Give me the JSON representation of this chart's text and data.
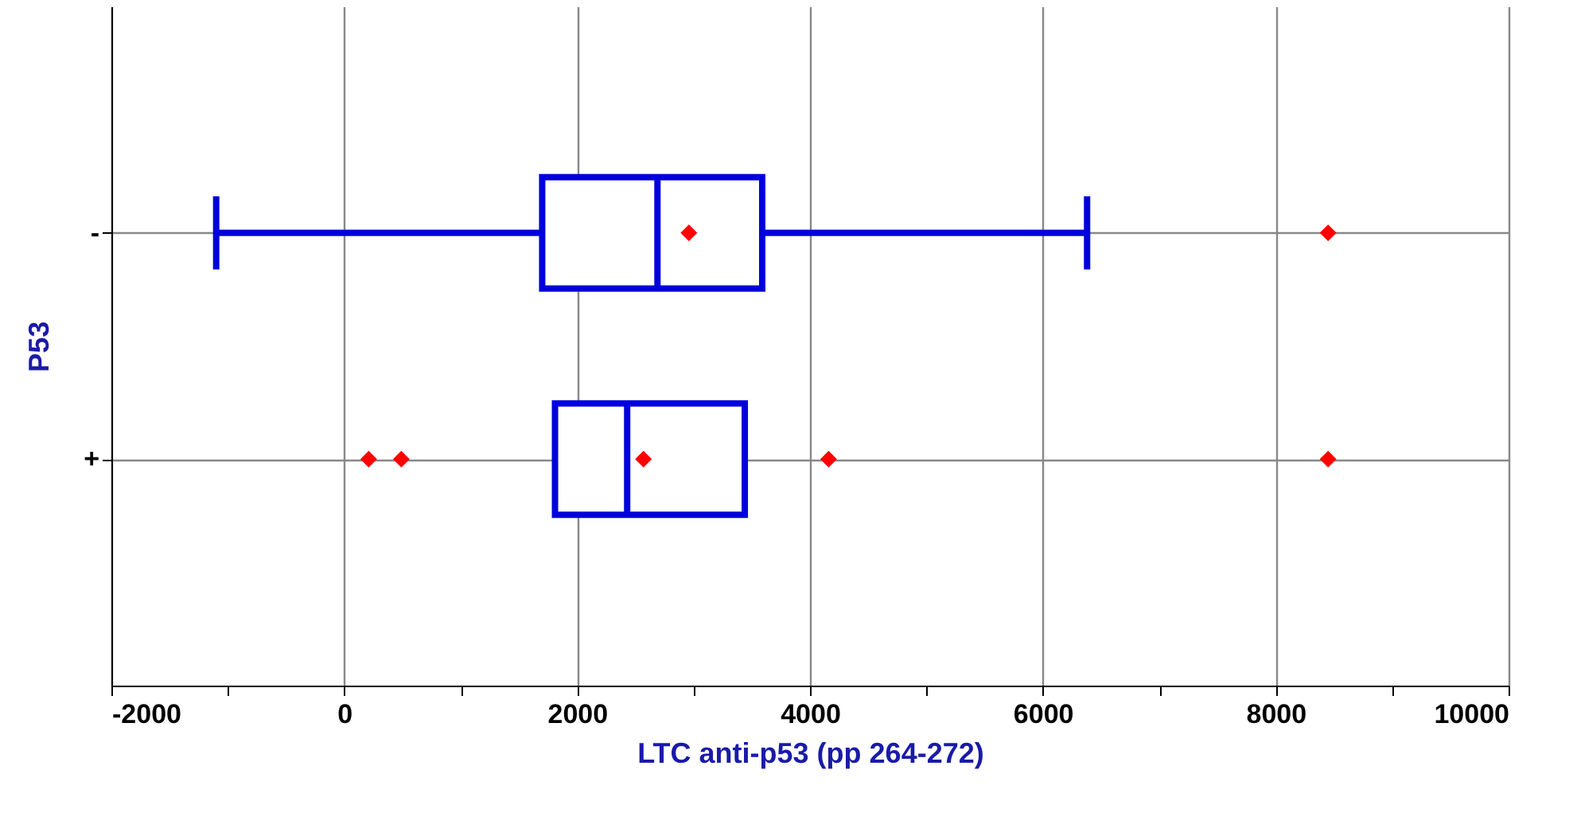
{
  "chart_data": {
    "type": "box",
    "orientation": "horizontal",
    "xlabel": "LTC anti-p53 (pp 264-272)",
    "ylabel": "P53",
    "categories": [
      "-",
      "+"
    ],
    "xlim": [
      -2000,
      10000
    ],
    "xticks": [
      -2000,
      {
        "value": -1000,
        "label": null
      },
      0,
      {
        "value": 1000,
        "label": null
      },
      2000,
      {
        "value": 3000,
        "label": null
      },
      4000,
      {
        "value": 5000,
        "label": null
      },
      6000,
      {
        "value": 7000,
        "label": null
      },
      8000,
      {
        "value": 9000,
        "label": null
      },
      10000
    ],
    "grid": true,
    "marker": "diamond",
    "colors": [
      "#ff0000",
      "#ff0000"
    ],
    "series": [
      {
        "color": "#0000dd",
        "boxes": [
          {
            "low": -1100,
            "q1": 1700,
            "median": 2690,
            "q3": 3590,
            "high": 6380,
            "mean": 2960,
            "outliers": [
              8450
            ]
          },
          {
            "low": 1810,
            "q1": 1810,
            "median": 2430,
            "q3": 3440,
            "high": 3440,
            "mean": 2570,
            "outliers": [
              210,
              490,
              4160,
              8450
            ]
          }
        ]
      }
    ]
  }
}
